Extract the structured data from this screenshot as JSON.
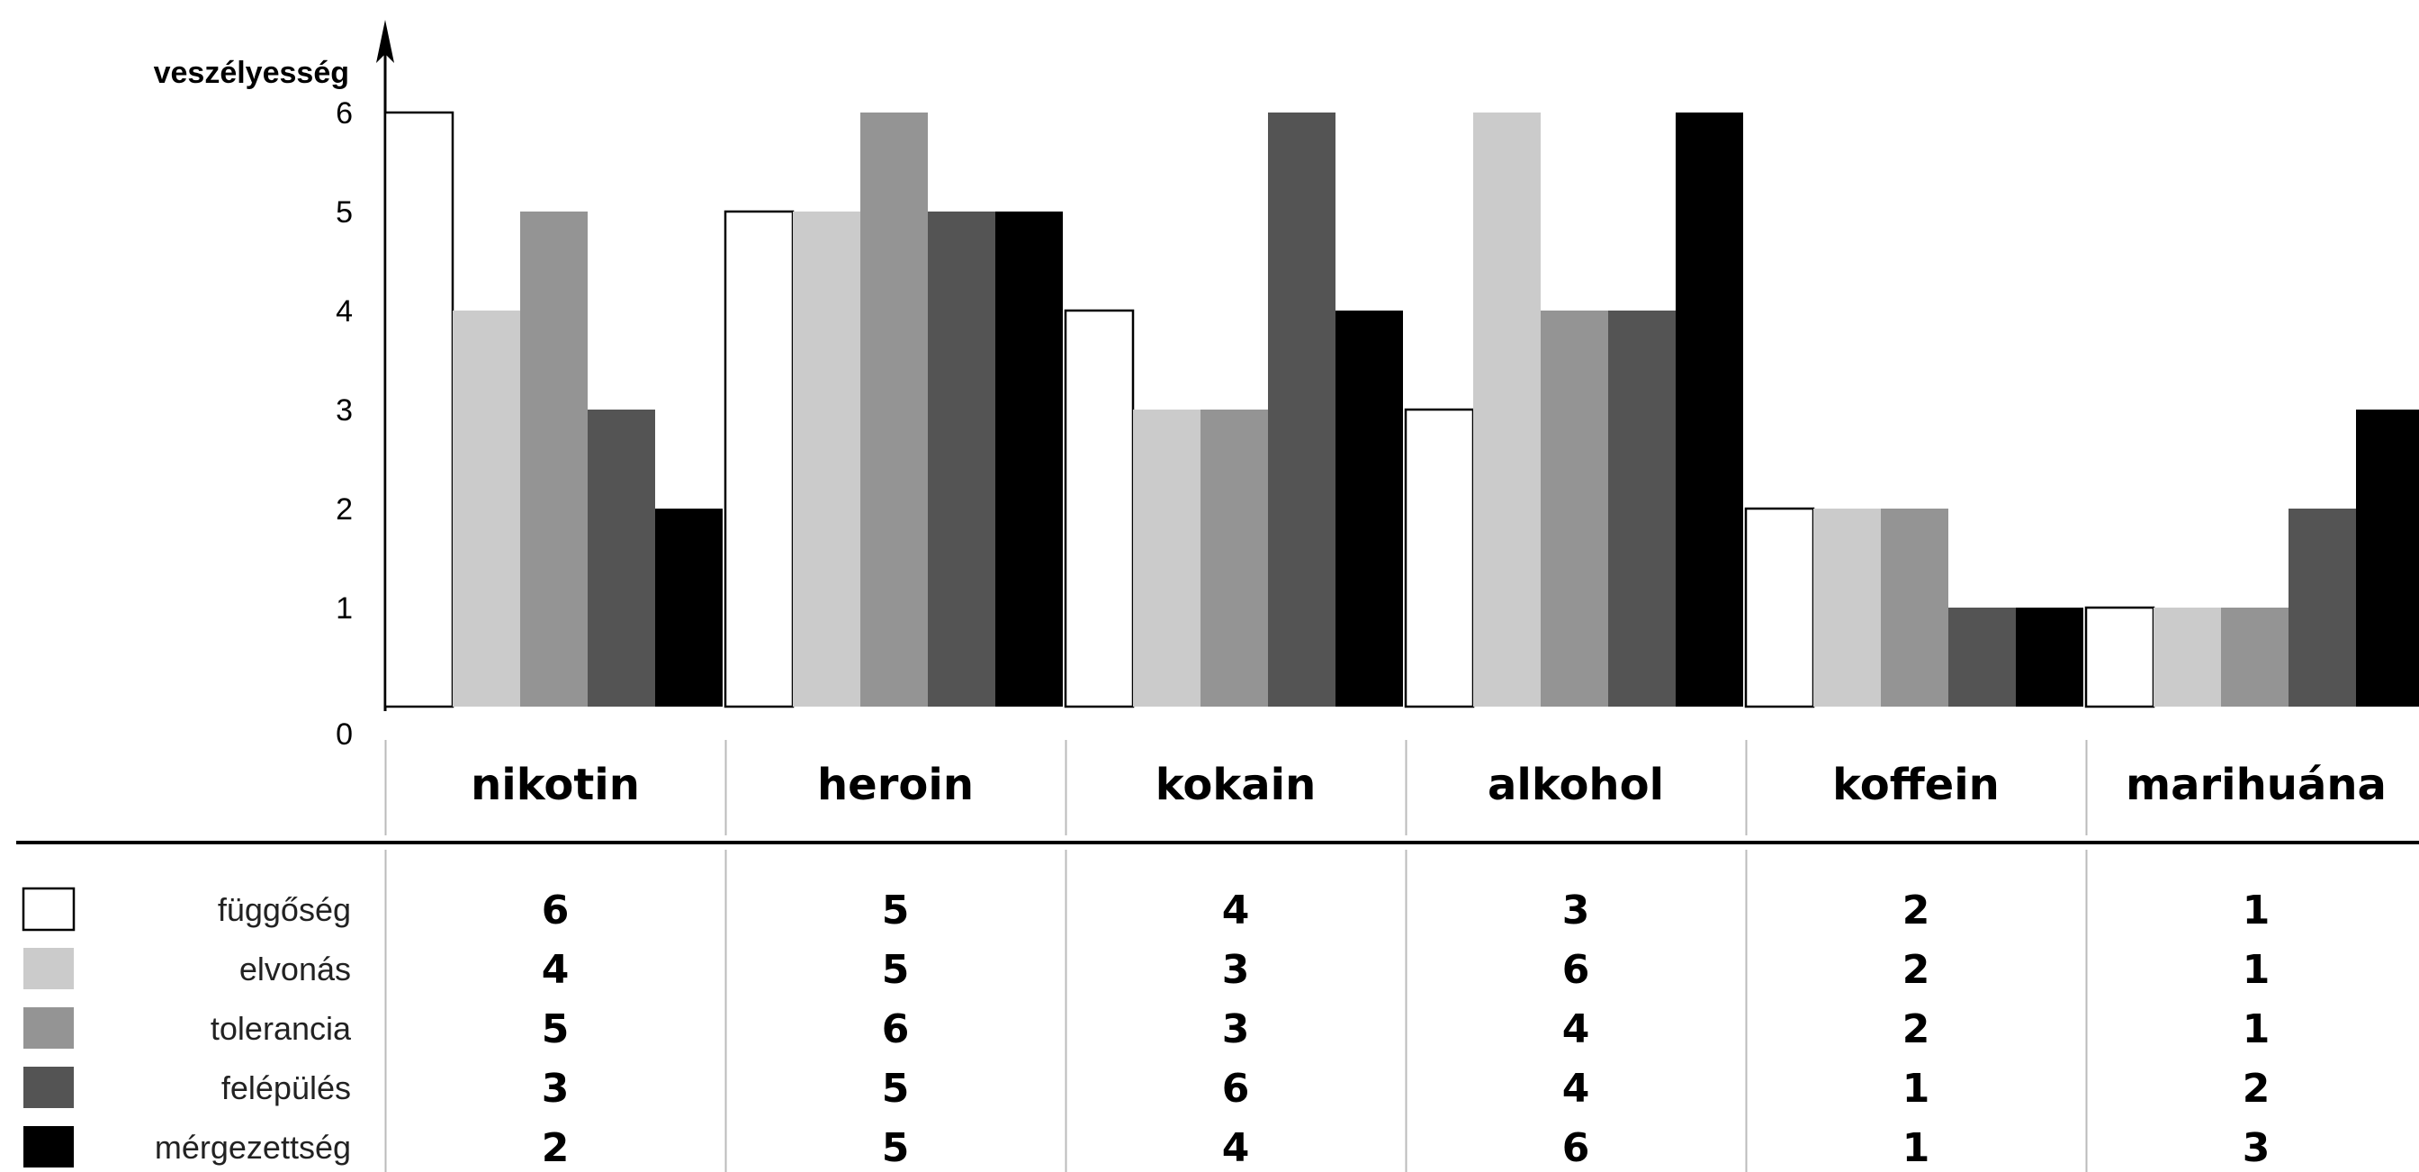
{
  "chart_data": {
    "type": "bar",
    "ylabel": "veszélyesség",
    "ylim": [
      0,
      6
    ],
    "yticks": [
      "0",
      "1",
      "2",
      "3",
      "4",
      "5",
      "6"
    ],
    "categories": [
      "nikotin",
      "heroin",
      "kokain",
      "alkohol",
      "koffein",
      "marihuána"
    ],
    "series": [
      {
        "name": "függőség",
        "color": "#ffffff",
        "values": [
          6,
          5,
          4,
          3,
          2,
          1
        ]
      },
      {
        "name": "elvonás",
        "color": "#cbcbcb",
        "values": [
          4,
          5,
          3,
          6,
          2,
          1
        ]
      },
      {
        "name": "tolerancia",
        "color": "#949494",
        "values": [
          5,
          6,
          3,
          4,
          2,
          1
        ]
      },
      {
        "name": "felépülés",
        "color": "#545454",
        "values": [
          3,
          5,
          6,
          4,
          1,
          2
        ]
      },
      {
        "name": "mérgezettség",
        "color": "#000000",
        "values": [
          2,
          5,
          4,
          6,
          1,
          3
        ]
      }
    ],
    "legend": "bottom-left",
    "grid": false
  }
}
